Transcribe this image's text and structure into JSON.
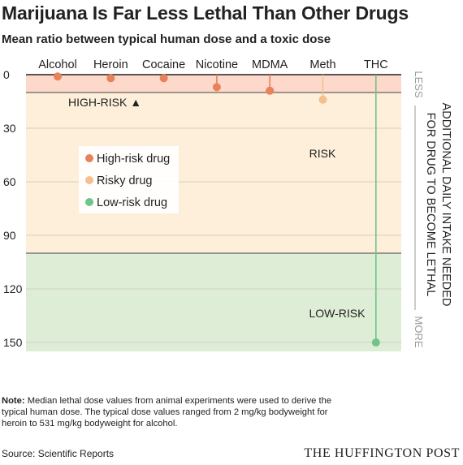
{
  "chart_data": {
    "type": "scatter",
    "title": "Marijuana Is Far Less Lethal Than Other Drugs",
    "subtitle": "Mean ratio between typical human dose and a toxic dose",
    "categories": [
      "Alcohol",
      "Heroin",
      "Cocaine",
      "Nicotine",
      "MDMA",
      "Meth",
      "THC"
    ],
    "series": [
      {
        "name": "High-risk drug",
        "color": "#e8825a",
        "points": [
          {
            "drug": "Alcohol",
            "value": 1
          },
          {
            "drug": "Heroin",
            "value": 2
          },
          {
            "drug": "Cocaine",
            "value": 2
          },
          {
            "drug": "Nicotine",
            "value": 7
          },
          {
            "drug": "MDMA",
            "value": 9
          }
        ]
      },
      {
        "name": "Risky drug",
        "color": "#f5bf8e",
        "points": [
          {
            "drug": "Meth",
            "value": 14
          }
        ]
      },
      {
        "name": "Low-risk drug",
        "color": "#6fc48a",
        "points": [
          {
            "drug": "THC",
            "value": 150
          }
        ]
      }
    ],
    "yticks": [
      0,
      30,
      60,
      90,
      120,
      150
    ],
    "ylim": [
      0,
      155
    ],
    "y_inverted": true,
    "zones": [
      {
        "label": "HIGH-RISK",
        "marker": "▲",
        "from": 0,
        "to": 10,
        "color": "#fcd9cb"
      },
      {
        "label": "RISK",
        "from": 10,
        "to": 100,
        "color": "#fdefd9"
      },
      {
        "label": "LOW-RISK",
        "from": 100,
        "to": 155,
        "color": "#deedd6"
      }
    ],
    "axis_label_right": [
      "ADDITIONAL DAILY INTAKE NEEDED",
      "FOR DRUG TO BECOME LETHAL"
    ],
    "scale_ends": {
      "top": "LESS",
      "bottom": "MORE"
    },
    "legend_placement": "upper-left",
    "grid": true
  },
  "note": {
    "label": "Note:",
    "text": " Median lethal dose values from animal experiments were used to derive the typical human dose. The typical dose values ranged from 2 mg/kg bodyweight for heroin to 531 mg/kg bodyweight for alcohol."
  },
  "source": "Source: Scientific Reports",
  "brand": "THE HUFFINGTON POST"
}
